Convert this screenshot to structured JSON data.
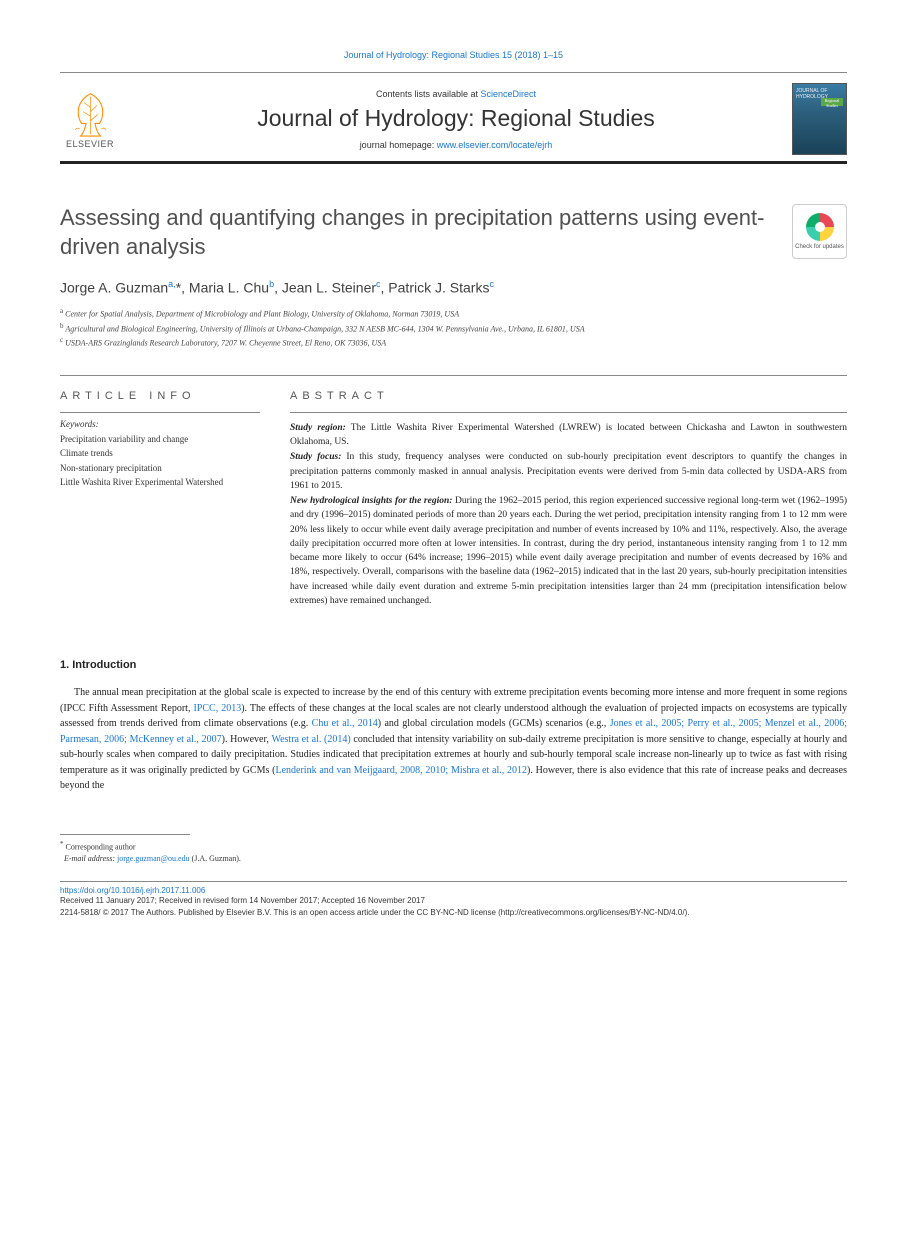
{
  "journal_ref": "Journal of Hydrology: Regional Studies 15 (2018) 1–15",
  "header": {
    "contents_prefix": "Contents lists available at ",
    "contents_link": "ScienceDirect",
    "journal_title": "Journal of Hydrology: Regional Studies",
    "homepage_prefix": "journal homepage: ",
    "homepage_url": "www.elsevier.com/locate/ejrh",
    "elsevier_label": "ELSEVIER",
    "cover_text": "JOURNAL OF HYDROLOGY",
    "cover_accent": "Regional Studies"
  },
  "updates_badge": "Check for updates",
  "title": "Assessing and quantifying changes in precipitation patterns using event-driven analysis",
  "authors_html": "Jorge A. Guzman<sup>a,</sup>*, Maria L. Chu<sup>b</sup>, Jean L. Steiner<sup>c</sup>, Patrick J. Starks<sup>c</sup>",
  "affiliations": [
    {
      "sup": "a",
      "text": "Center for Spatial Analysis, Department of Microbiology and Plant Biology, University of Oklahoma, Norman 73019, USA"
    },
    {
      "sup": "b",
      "text": "Agricultural and Biological Engineering, University of Illinois at Urbana-Champaign, 332 N AESB MC-644, 1304 W. Pennsylvania Ave., Urbana, IL 61801, USA"
    },
    {
      "sup": "c",
      "text": "USDA-ARS Grazinglands Research Laboratory, 7207 W. Cheyenne Street, El Reno, OK 73036, USA"
    }
  ],
  "article_info": {
    "heading": "ARTICLE INFO",
    "keywords_label": "Keywords:",
    "keywords": [
      "Precipitation variability and change",
      "Climate trends",
      "Non-stationary precipitation",
      "Little Washita River Experimental Watershed"
    ]
  },
  "abstract": {
    "heading": "ABSTRACT",
    "region_label": "Study region:",
    "region_text": " The Little Washita River Experimental Watershed (LWREW) is located between Chickasha and Lawton in southwestern Oklahoma, US.",
    "focus_label": "Study focus:",
    "focus_text": " In this study, frequency analyses were conducted on sub-hourly precipitation event descriptors to quantify the changes in precipitation patterns commonly masked in annual analysis. Precipitation events were derived from 5-min data collected by USDA-ARS from 1961 to 2015.",
    "insights_label": "New hydrological insights for the region:",
    "insights_text": " During the 1962–2015 period, this region experienced successive regional long-term wet (1962–1995) and dry (1996–2015) dominated periods of more than 20 years each. During the wet period, precipitation intensity ranging from 1 to 12 mm were 20% less likely to occur while event daily average precipitation and number of events increased by 10% and 11%, respectively. Also, the average daily precipitation occurred more often at lower intensities. In contrast, during the dry period, instantaneous intensity ranging from 1 to 12 mm became more likely to occur (64% increase; 1996–2015) while event daily average precipitation and number of events decreased by 16% and 18%, respectively. Overall, comparisons with the baseline data (1962–2015) indicated that in the last 20 years, sub-hourly precipitation intensities have increased while daily event duration and extreme 5-min precipitation intensities larger than 24 mm (precipitation intensification below extremes) have remained unchanged."
  },
  "intro": {
    "heading": "1. Introduction",
    "para1_parts": [
      {
        "t": "The annual mean precipitation at the global scale is expected to increase by the end of this century with extreme precipitation events becoming more intense and more frequent in some regions (IPCC Fifth Assessment Report, "
      },
      {
        "l": "IPCC, 2013"
      },
      {
        "t": "). The effects of these changes at the local scales are not clearly understood although the evaluation of projected impacts on ecosystems are typically assessed from trends derived from climate observations (e.g. "
      },
      {
        "l": "Chu et al., 2014"
      },
      {
        "t": ") and global circulation models (GCMs) scenarios (e.g., "
      },
      {
        "l": "Jones et al., 2005; Perry et al., 2005; Menzel et al., 2006; Parmesan, 2006; McKenney et al., 2007"
      },
      {
        "t": "). However, "
      },
      {
        "l": "Westra et al. (2014)"
      },
      {
        "t": " concluded that intensity variability on sub-daily extreme precipitation is more sensitive to change, especially at hourly and sub-hourly scales when compared to daily precipitation. Studies indicated that precipitation extremes at hourly and sub-hourly temporal scale increase non-linearly up to twice as fast with rising temperature as it was originally predicted by GCMs ("
      },
      {
        "l": "Lenderink and van Meijgaard, 2008, 2010; Mishra et al., 2012"
      },
      {
        "t": "). However, there is also evidence that this rate of increase peaks and decreases beyond the"
      }
    ]
  },
  "footnote": {
    "corresponding": "Corresponding author",
    "email_label": "E-mail address:",
    "email": "jorge.guzman@ou.edu",
    "email_attrib": " (J.A. Guzman)."
  },
  "footer": {
    "doi": "https://doi.org/10.1016/j.ejrh.2017.11.006",
    "received": "Received 11 January 2017; Received in revised form 14 November 2017; Accepted 16 November 2017",
    "copyright": "2214-5818/ © 2017 The Authors. Published by Elsevier B.V. This is an open access article under the CC BY-NC-ND license (http://creativecommons.org/licenses/BY-NC-ND/4.0/)."
  }
}
